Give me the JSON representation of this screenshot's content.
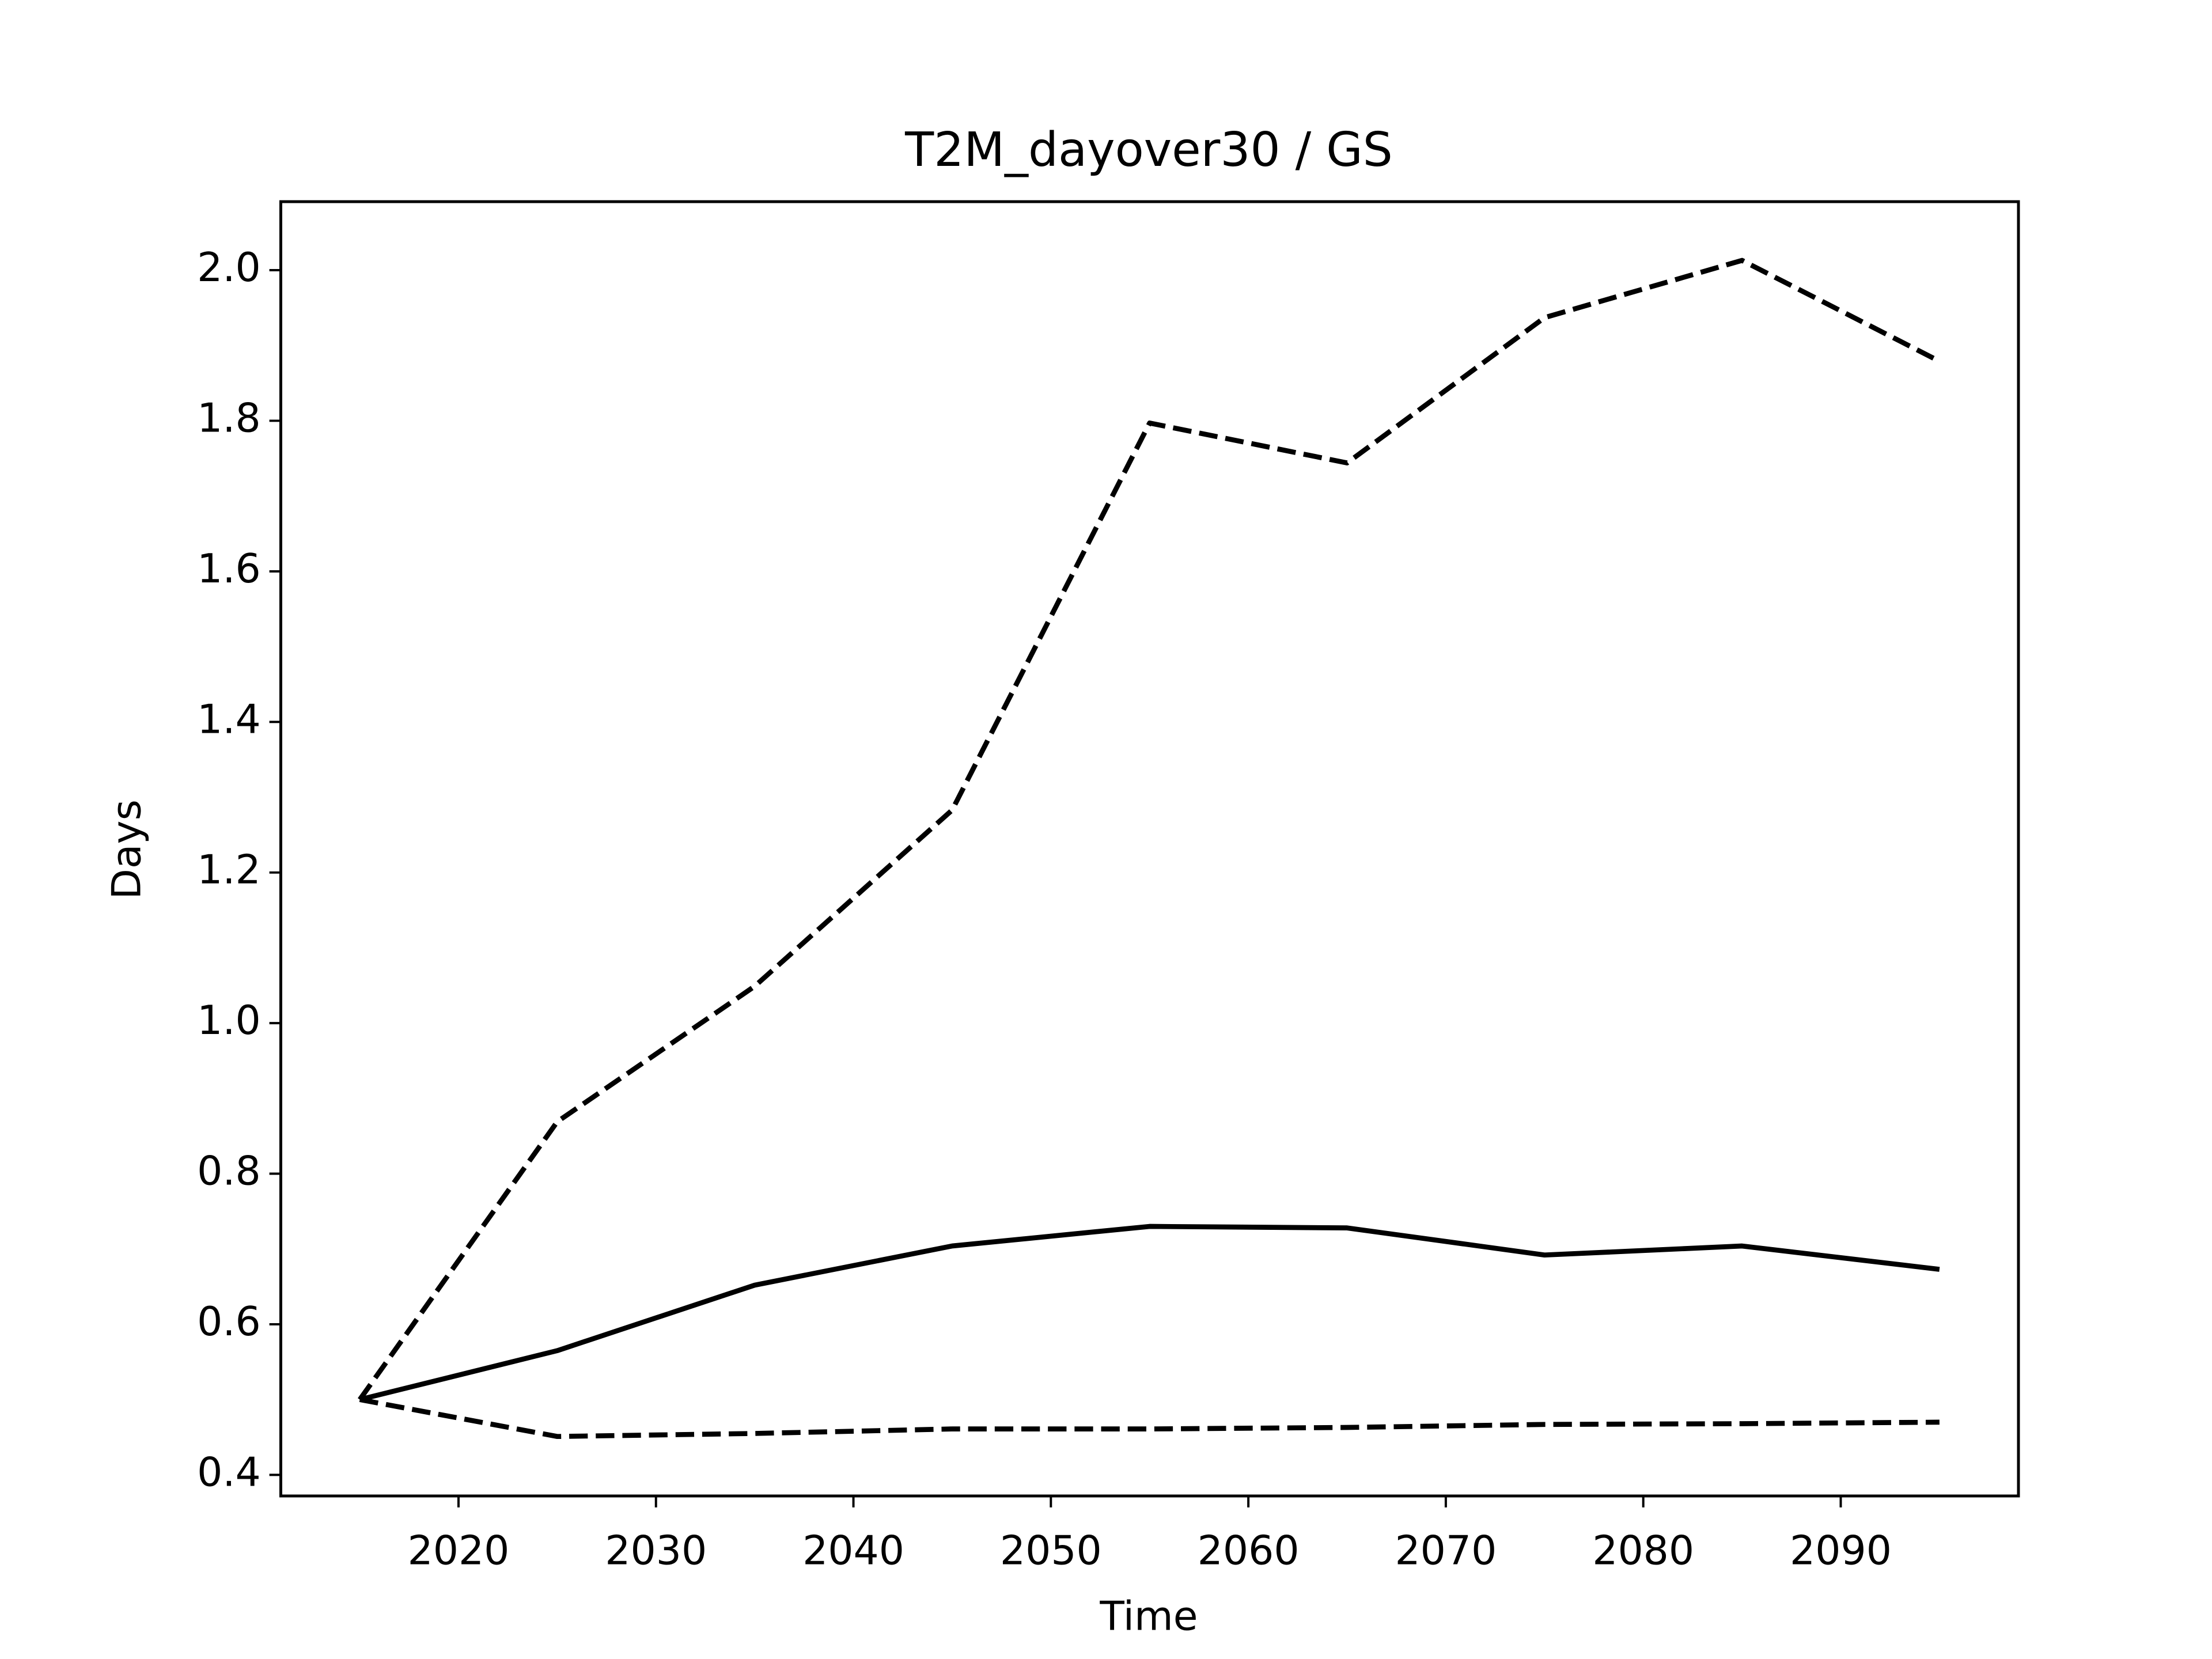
{
  "chart_data": {
    "type": "line",
    "title": "T2M_dayover30 / GS",
    "x_label": "Time",
    "y_label": "Days",
    "x": [
      2015,
      2025,
      2035,
      2045,
      2055,
      2065,
      2075,
      2085,
      2095
    ],
    "series": [
      {
        "color": "#000000",
        "linestyle": "dashed",
        "values": [
          0.5,
          0.869,
          1.049,
          1.283,
          1.797,
          1.744,
          1.937,
          2.013,
          1.879
        ]
      },
      {
        "color": "#000000",
        "linestyle": "solid",
        "values": [
          0.5,
          0.565,
          0.652,
          0.704,
          0.73,
          0.728,
          0.692,
          0.704,
          0.673
        ]
      },
      {
        "color": "#000000",
        "linestyle": "dashed",
        "values": [
          0.5,
          0.451,
          0.455,
          0.461,
          0.461,
          0.463,
          0.467,
          0.468,
          0.47
        ]
      }
    ],
    "xlim": [
      2011,
      2099
    ],
    "xticks": [
      2020,
      2030,
      2040,
      2050,
      2060,
      2070,
      2080,
      2090
    ],
    "ylim": [
      0.372,
      2.091
    ],
    "yticks": [
      0.4,
      0.6,
      0.8,
      {
        "value": 1,
        "label": "1.0"
      },
      1.2,
      1.4,
      1.6,
      1.8,
      {
        "value": 2,
        "label": "2.0"
      }
    ],
    "grid": false
  }
}
